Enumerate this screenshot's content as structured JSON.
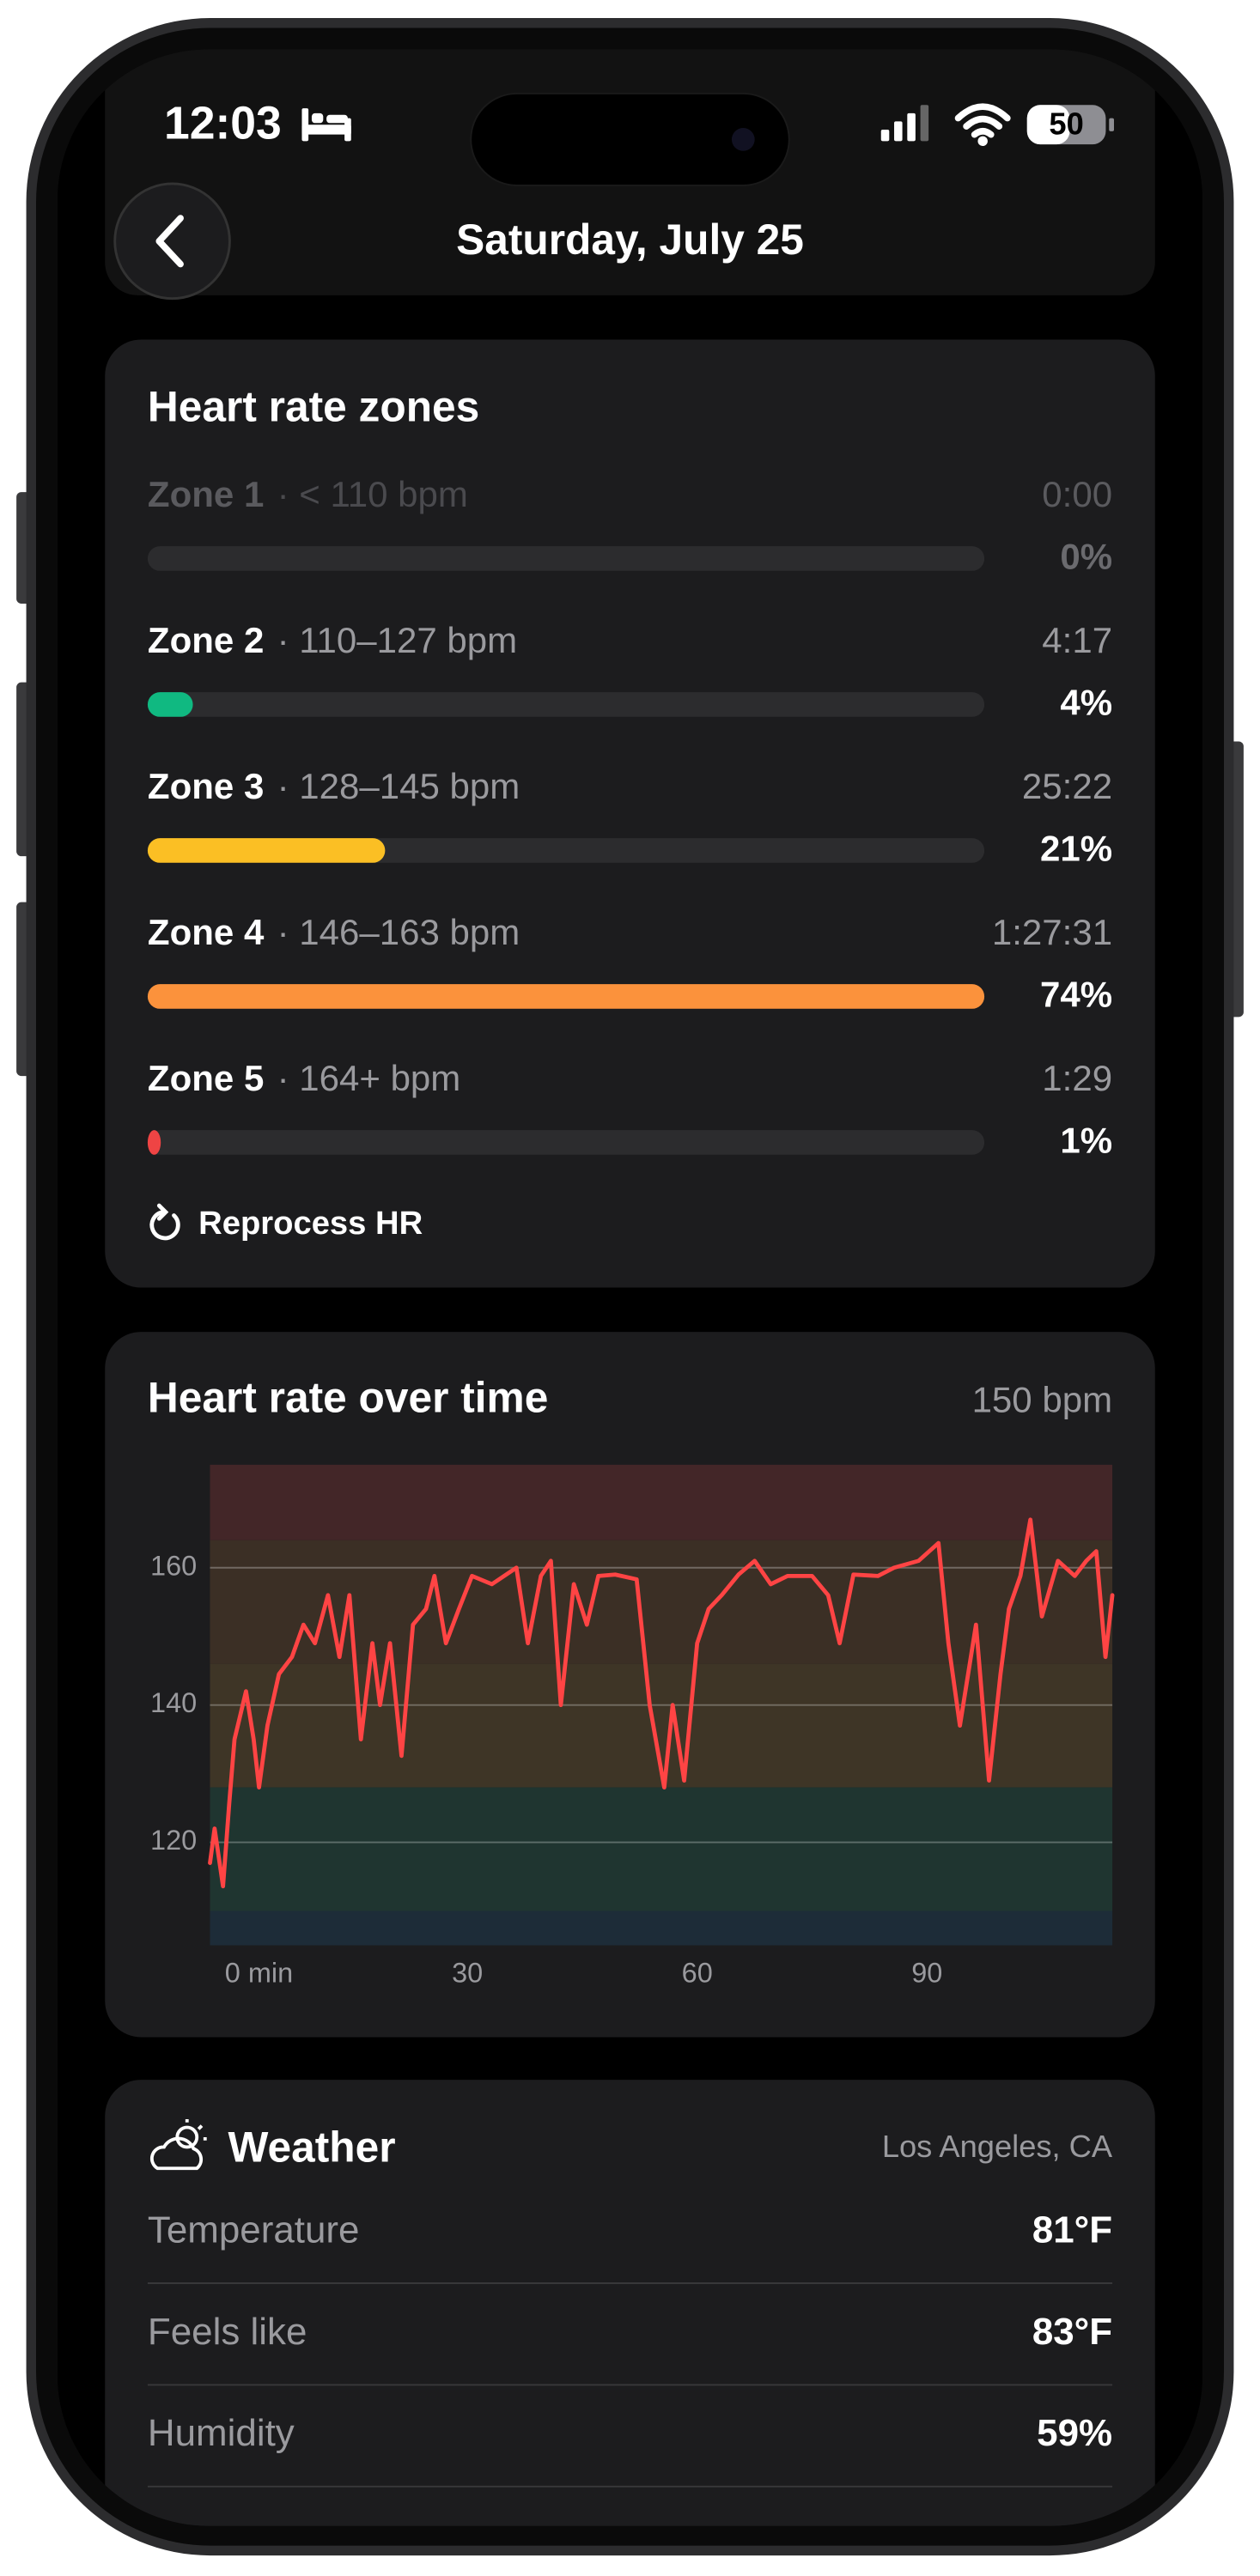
{
  "status_bar": {
    "time": "12:03",
    "battery": "50"
  },
  "header": {
    "title": "Saturday, July 25"
  },
  "zones_card": {
    "title": "Heart rate zones",
    "zones": [
      {
        "name": "Zone 1",
        "range": "· < 110 bpm",
        "time": "0:00",
        "percent": 0,
        "percent_label": "0%",
        "color": "#3a3a3c"
      },
      {
        "name": "Zone 2",
        "range": "· 110–127 bpm",
        "time": "4:17",
        "percent": 4,
        "percent_label": "4%",
        "color": "#10b981"
      },
      {
        "name": "Zone 3",
        "range": "· 128–145 bpm",
        "time": "25:22",
        "percent": 21,
        "percent_label": "21%",
        "color": "#fbbf24"
      },
      {
        "name": "Zone 4",
        "range": "· 146–163 bpm",
        "time": "1:27:31",
        "percent": 74,
        "percent_label": "74%",
        "color": "#fb923c"
      },
      {
        "name": "Zone 5",
        "range": "· 164+ bpm",
        "time": "1:29",
        "percent": 1,
        "percent_label": "1%",
        "color": "#ef4444"
      }
    ],
    "action": "Reprocess HR"
  },
  "chart_data": {
    "type": "line",
    "title": "Heart rate over time",
    "subtitle": "150 bpm",
    "x": [
      -3.6,
      -3,
      -1.9,
      -1.1,
      -0.4,
      1.1,
      2.1,
      2.8,
      3.9,
      5.4,
      7.1,
      8.6,
      10.1,
      11.8,
      13.3,
      14.6,
      16.1,
      17.6,
      18.6,
      19.9,
      21.4,
      22.9,
      24.6,
      25.7,
      27.2,
      28.9,
      30.6,
      33.2,
      36.4,
      37.9,
      39.6,
      40.9,
      42.2,
      43.9,
      45.6,
      47.1,
      49.3,
      52.1,
      53.8,
      55.7,
      56.8,
      58.3,
      60,
      61.5,
      63.2,
      65.4,
      67.5,
      69.6,
      71.8,
      75,
      77.1,
      78.6,
      80.4,
      83.6,
      85.7,
      88.9,
      91.5,
      92.8,
      94.3,
      96.4,
      98.1,
      99.6,
      100.7,
      102.2,
      103.5,
      105,
      107.1,
      109.3,
      110.8,
      112.1,
      113.3,
      114.2
    ],
    "series": [
      {
        "name": "Heart rate",
        "color": "#ff4444",
        "values": [
          117,
          122,
          113.6,
          125.5,
          135,
          142,
          135,
          128,
          137,
          144.5,
          147,
          151.7,
          149,
          156,
          147,
          156,
          135,
          149,
          140,
          149,
          132.6,
          151.7,
          154,
          158.8,
          149,
          154,
          158.8,
          157.6,
          160,
          149,
          158.8,
          161,
          140,
          157.6,
          151.7,
          158.8,
          159,
          158.3,
          140,
          128,
          140,
          129,
          149,
          154,
          156,
          159,
          161,
          157.6,
          158.8,
          158.8,
          156,
          149,
          159,
          158.8,
          160,
          161,
          163.6,
          149,
          137,
          151.7,
          129,
          144.5,
          154,
          158.8,
          167,
          152.9,
          161,
          158.8,
          161,
          162.4,
          147,
          156
        ]
      }
    ],
    "xlim": [
      -3.6,
      114.2
    ],
    "xticks": [
      {
        "value": 0,
        "label": "0 min"
      },
      30,
      60,
      90
    ],
    "ylim": [
      105,
      175
    ],
    "yticks": [
      120,
      140,
      160
    ],
    "grid": true,
    "bands": [
      {
        "from": 164,
        "to": 175,
        "color": "#432628"
      },
      {
        "from": 146,
        "to": 164,
        "color": "#3b2f25"
      },
      {
        "from": 128,
        "to": 146,
        "color": "#3e3526"
      },
      {
        "from": 110,
        "to": 128,
        "color": "#1f3530"
      },
      {
        "from": 105,
        "to": 110,
        "color": "#1d2c38"
      }
    ]
  },
  "weather_card": {
    "title": "Weather",
    "location": "Los Angeles, CA",
    "rows": [
      {
        "label": "Temperature",
        "value": "81°F"
      },
      {
        "label": "Feels like",
        "value": "83°F"
      },
      {
        "label": "Humidity",
        "value": "59%"
      }
    ]
  }
}
